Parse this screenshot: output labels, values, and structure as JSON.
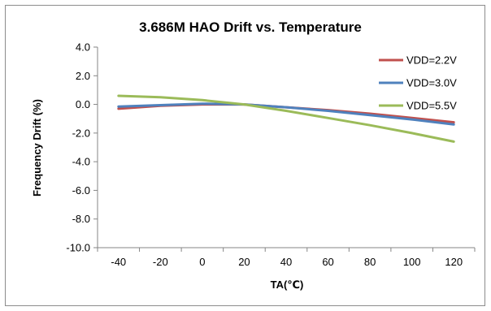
{
  "chart_data": {
    "type": "line",
    "title": "3.686M HAO Drift vs. Temperature",
    "xlabel": "TA(℃)",
    "ylabel": "Frequency Drift (%)",
    "x": [
      -40,
      -20,
      0,
      20,
      40,
      60,
      80,
      100,
      120
    ],
    "xlim": [
      -50,
      130
    ],
    "ylim": [
      -10.0,
      4.0
    ],
    "yticks": [
      4.0,
      2.0,
      0.0,
      -2.0,
      -4.0,
      -6.0,
      -8.0,
      -10.0
    ],
    "ytick_labels": [
      "4.0",
      "2.0",
      "0.0",
      "-2.0",
      "-4.0",
      "-6.0",
      "-8.0",
      "-10.0"
    ],
    "xtick_labels": [
      "-40",
      "-20",
      "0",
      "20",
      "40",
      "60",
      "80",
      "100",
      "120"
    ],
    "grid": false,
    "legend_position": "top-right",
    "series": [
      {
        "name": "VDD=2.2V",
        "color": "#c0504d",
        "values": [
          -0.3,
          -0.1,
          0.0,
          0.0,
          -0.2,
          -0.4,
          -0.65,
          -0.95,
          -1.25
        ]
      },
      {
        "name": "VDD=3.0V",
        "color": "#4f81bd",
        "values": [
          -0.15,
          -0.05,
          0.05,
          0.0,
          -0.2,
          -0.45,
          -0.75,
          -1.05,
          -1.4
        ]
      },
      {
        "name": "VDD=5.5V",
        "color": "#9bbb59",
        "values": [
          0.6,
          0.5,
          0.3,
          0.0,
          -0.45,
          -0.95,
          -1.45,
          -2.0,
          -2.6
        ]
      }
    ]
  }
}
